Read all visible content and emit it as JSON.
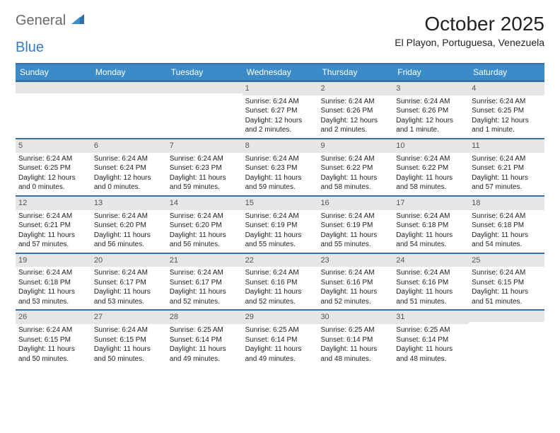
{
  "logo": {
    "text1": "General",
    "text2": "Blue"
  },
  "title": "October 2025",
  "location": "El Playon, Portuguesa, Venezuela",
  "day_headers": [
    "Sunday",
    "Monday",
    "Tuesday",
    "Wednesday",
    "Thursday",
    "Friday",
    "Saturday"
  ],
  "colors": {
    "header_bg": "#3b8bc9",
    "header_border": "#3b6fa3",
    "daynum_bg": "#e6e6e6",
    "text": "#222222",
    "logo_gray": "#6b6b6b",
    "logo_blue": "#3b7bbf"
  },
  "weeks": [
    [
      {
        "num": "",
        "sunrise": "",
        "sunset": "",
        "daylight": ""
      },
      {
        "num": "",
        "sunrise": "",
        "sunset": "",
        "daylight": ""
      },
      {
        "num": "",
        "sunrise": "",
        "sunset": "",
        "daylight": ""
      },
      {
        "num": "1",
        "sunrise": "Sunrise: 6:24 AM",
        "sunset": "Sunset: 6:27 PM",
        "daylight": "Daylight: 12 hours and 2 minutes."
      },
      {
        "num": "2",
        "sunrise": "Sunrise: 6:24 AM",
        "sunset": "Sunset: 6:26 PM",
        "daylight": "Daylight: 12 hours and 2 minutes."
      },
      {
        "num": "3",
        "sunrise": "Sunrise: 6:24 AM",
        "sunset": "Sunset: 6:26 PM",
        "daylight": "Daylight: 12 hours and 1 minute."
      },
      {
        "num": "4",
        "sunrise": "Sunrise: 6:24 AM",
        "sunset": "Sunset: 6:25 PM",
        "daylight": "Daylight: 12 hours and 1 minute."
      }
    ],
    [
      {
        "num": "5",
        "sunrise": "Sunrise: 6:24 AM",
        "sunset": "Sunset: 6:25 PM",
        "daylight": "Daylight: 12 hours and 0 minutes."
      },
      {
        "num": "6",
        "sunrise": "Sunrise: 6:24 AM",
        "sunset": "Sunset: 6:24 PM",
        "daylight": "Daylight: 12 hours and 0 minutes."
      },
      {
        "num": "7",
        "sunrise": "Sunrise: 6:24 AM",
        "sunset": "Sunset: 6:23 PM",
        "daylight": "Daylight: 11 hours and 59 minutes."
      },
      {
        "num": "8",
        "sunrise": "Sunrise: 6:24 AM",
        "sunset": "Sunset: 6:23 PM",
        "daylight": "Daylight: 11 hours and 59 minutes."
      },
      {
        "num": "9",
        "sunrise": "Sunrise: 6:24 AM",
        "sunset": "Sunset: 6:22 PM",
        "daylight": "Daylight: 11 hours and 58 minutes."
      },
      {
        "num": "10",
        "sunrise": "Sunrise: 6:24 AM",
        "sunset": "Sunset: 6:22 PM",
        "daylight": "Daylight: 11 hours and 58 minutes."
      },
      {
        "num": "11",
        "sunrise": "Sunrise: 6:24 AM",
        "sunset": "Sunset: 6:21 PM",
        "daylight": "Daylight: 11 hours and 57 minutes."
      }
    ],
    [
      {
        "num": "12",
        "sunrise": "Sunrise: 6:24 AM",
        "sunset": "Sunset: 6:21 PM",
        "daylight": "Daylight: 11 hours and 57 minutes."
      },
      {
        "num": "13",
        "sunrise": "Sunrise: 6:24 AM",
        "sunset": "Sunset: 6:20 PM",
        "daylight": "Daylight: 11 hours and 56 minutes."
      },
      {
        "num": "14",
        "sunrise": "Sunrise: 6:24 AM",
        "sunset": "Sunset: 6:20 PM",
        "daylight": "Daylight: 11 hours and 56 minutes."
      },
      {
        "num": "15",
        "sunrise": "Sunrise: 6:24 AM",
        "sunset": "Sunset: 6:19 PM",
        "daylight": "Daylight: 11 hours and 55 minutes."
      },
      {
        "num": "16",
        "sunrise": "Sunrise: 6:24 AM",
        "sunset": "Sunset: 6:19 PM",
        "daylight": "Daylight: 11 hours and 55 minutes."
      },
      {
        "num": "17",
        "sunrise": "Sunrise: 6:24 AM",
        "sunset": "Sunset: 6:18 PM",
        "daylight": "Daylight: 11 hours and 54 minutes."
      },
      {
        "num": "18",
        "sunrise": "Sunrise: 6:24 AM",
        "sunset": "Sunset: 6:18 PM",
        "daylight": "Daylight: 11 hours and 54 minutes."
      }
    ],
    [
      {
        "num": "19",
        "sunrise": "Sunrise: 6:24 AM",
        "sunset": "Sunset: 6:18 PM",
        "daylight": "Daylight: 11 hours and 53 minutes."
      },
      {
        "num": "20",
        "sunrise": "Sunrise: 6:24 AM",
        "sunset": "Sunset: 6:17 PM",
        "daylight": "Daylight: 11 hours and 53 minutes."
      },
      {
        "num": "21",
        "sunrise": "Sunrise: 6:24 AM",
        "sunset": "Sunset: 6:17 PM",
        "daylight": "Daylight: 11 hours and 52 minutes."
      },
      {
        "num": "22",
        "sunrise": "Sunrise: 6:24 AM",
        "sunset": "Sunset: 6:16 PM",
        "daylight": "Daylight: 11 hours and 52 minutes."
      },
      {
        "num": "23",
        "sunrise": "Sunrise: 6:24 AM",
        "sunset": "Sunset: 6:16 PM",
        "daylight": "Daylight: 11 hours and 52 minutes."
      },
      {
        "num": "24",
        "sunrise": "Sunrise: 6:24 AM",
        "sunset": "Sunset: 6:16 PM",
        "daylight": "Daylight: 11 hours and 51 minutes."
      },
      {
        "num": "25",
        "sunrise": "Sunrise: 6:24 AM",
        "sunset": "Sunset: 6:15 PM",
        "daylight": "Daylight: 11 hours and 51 minutes."
      }
    ],
    [
      {
        "num": "26",
        "sunrise": "Sunrise: 6:24 AM",
        "sunset": "Sunset: 6:15 PM",
        "daylight": "Daylight: 11 hours and 50 minutes."
      },
      {
        "num": "27",
        "sunrise": "Sunrise: 6:24 AM",
        "sunset": "Sunset: 6:15 PM",
        "daylight": "Daylight: 11 hours and 50 minutes."
      },
      {
        "num": "28",
        "sunrise": "Sunrise: 6:25 AM",
        "sunset": "Sunset: 6:14 PM",
        "daylight": "Daylight: 11 hours and 49 minutes."
      },
      {
        "num": "29",
        "sunrise": "Sunrise: 6:25 AM",
        "sunset": "Sunset: 6:14 PM",
        "daylight": "Daylight: 11 hours and 49 minutes."
      },
      {
        "num": "30",
        "sunrise": "Sunrise: 6:25 AM",
        "sunset": "Sunset: 6:14 PM",
        "daylight": "Daylight: 11 hours and 48 minutes."
      },
      {
        "num": "31",
        "sunrise": "Sunrise: 6:25 AM",
        "sunset": "Sunset: 6:14 PM",
        "daylight": "Daylight: 11 hours and 48 minutes."
      },
      {
        "num": "",
        "sunrise": "",
        "sunset": "",
        "daylight": ""
      }
    ]
  ]
}
